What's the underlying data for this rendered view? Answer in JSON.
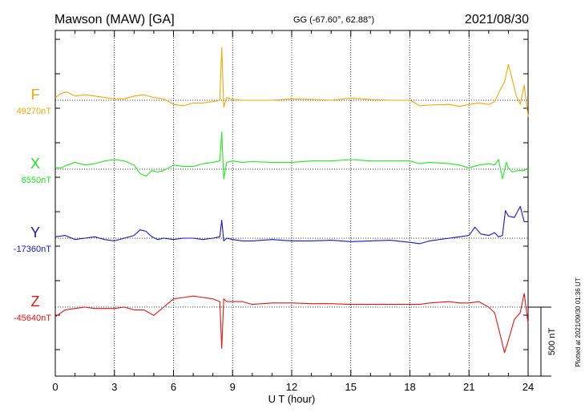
{
  "header": {
    "station": "Mawson (MAW)  [GA]",
    "coords": "GG (-67.60°,  62.88°)",
    "date": "2021/08/30"
  },
  "footer": {
    "plotted_at": "Plotted at 2021/09/30 01:36 UT"
  },
  "chart_data": {
    "type": "line",
    "xlabel": "U T (hour)",
    "xlim": [
      0,
      24
    ],
    "xticks": [
      "0",
      "3",
      "6",
      "9",
      "12",
      "15",
      "18",
      "21",
      "24"
    ],
    "grid": true,
    "scale_bar": {
      "label": "500 nT",
      "value_nT": 500
    },
    "colors": {
      "F": "#f5a800",
      "X": "#1ee81e",
      "Y": "#1414d4",
      "Z": "#e81414"
    },
    "series": [
      {
        "name": "F",
        "baseline_label": "49270nT",
        "baseline_nT": 49270,
        "x": [
          0,
          0.3,
          0.6,
          1.0,
          1.5,
          2.0,
          2.5,
          3.0,
          3.5,
          4.0,
          4.5,
          5.0,
          5.5,
          6.0,
          6.5,
          7.0,
          7.5,
          8.0,
          8.35,
          8.45,
          8.55,
          8.7,
          9.0,
          9.5,
          10,
          11,
          12,
          13,
          14,
          15,
          16,
          17,
          18,
          18.5,
          19,
          20,
          20.5,
          21,
          21.5,
          22,
          22.3,
          22.6,
          22.8,
          23.0,
          23.2,
          23.4,
          23.6,
          23.8,
          24
        ],
        "y": [
          49290,
          49320,
          49330,
          49300,
          49310,
          49300,
          49290,
          49280,
          49280,
          49300,
          49310,
          49290,
          49280,
          49240,
          49230,
          49250,
          49250,
          49260,
          49270,
          49650,
          49220,
          49290,
          49275,
          49270,
          49270,
          49270,
          49280,
          49275,
          49270,
          49285,
          49275,
          49270,
          49270,
          49230,
          49235,
          49240,
          49225,
          49240,
          49250,
          49240,
          49260,
          49350,
          49400,
          49530,
          49420,
          49300,
          49240,
          49380,
          49150
        ]
      },
      {
        "name": "X",
        "baseline_label": "6550nT",
        "baseline_nT": 6550,
        "x": [
          0,
          0.3,
          0.6,
          1.0,
          1.5,
          2.0,
          2.5,
          3.0,
          3.5,
          4.0,
          4.3,
          4.6,
          4.9,
          5.2,
          5.5,
          6.0,
          6.5,
          7.0,
          7.5,
          8.0,
          8.35,
          8.45,
          8.55,
          8.7,
          9.0,
          9.5,
          10,
          11,
          12,
          13,
          14,
          15,
          16,
          17,
          18,
          18.5,
          19,
          20,
          20.5,
          21,
          21.5,
          22,
          22.3,
          22.5,
          22.7,
          22.9,
          23.0,
          23.2,
          23.5,
          23.8,
          24
        ],
        "y": [
          6560,
          6560,
          6580,
          6600,
          6580,
          6590,
          6610,
          6620,
          6610,
          6580,
          6520,
          6500,
          6540,
          6530,
          6540,
          6580,
          6570,
          6570,
          6590,
          6600,
          6610,
          6820,
          6480,
          6600,
          6610,
          6600,
          6605,
          6600,
          6600,
          6610,
          6610,
          6620,
          6610,
          6610,
          6610,
          6590,
          6600,
          6590,
          6580,
          6560,
          6580,
          6590,
          6580,
          6620,
          6480,
          6600,
          6560,
          6530,
          6540,
          6540,
          6560
        ]
      },
      {
        "name": "Y",
        "baseline_label": "-17360nT",
        "baseline_nT": -17360,
        "x": [
          0,
          0.5,
          1.0,
          1.5,
          2.0,
          2.5,
          3.0,
          3.5,
          4.0,
          4.3,
          4.6,
          4.9,
          5.2,
          5.5,
          6.0,
          6.5,
          7.0,
          7.5,
          8.0,
          8.35,
          8.45,
          8.55,
          8.7,
          9.0,
          9.5,
          10,
          11,
          12,
          13,
          14,
          15,
          16,
          17,
          18,
          18.5,
          19,
          20,
          20.5,
          21,
          21.3,
          21.6,
          22,
          22.3,
          22.5,
          22.7,
          22.85,
          23.0,
          23.3,
          23.6,
          23.8,
          24
        ],
        "y": [
          -17350,
          -17340,
          -17370,
          -17360,
          -17350,
          -17370,
          -17380,
          -17360,
          -17340,
          -17300,
          -17310,
          -17350,
          -17370,
          -17360,
          -17370,
          -17360,
          -17360,
          -17370,
          -17360,
          -17350,
          -17230,
          -17380,
          -17360,
          -17370,
          -17380,
          -17380,
          -17370,
          -17380,
          -17380,
          -17375,
          -17385,
          -17380,
          -17375,
          -17390,
          -17400,
          -17380,
          -17360,
          -17350,
          -17340,
          -17280,
          -17330,
          -17340,
          -17320,
          -17350,
          -17340,
          -17160,
          -17200,
          -17210,
          -17130,
          -17240,
          -17240
        ]
      },
      {
        "name": "Z",
        "baseline_label": "-45640nT",
        "baseline_nT": -45640,
        "x": [
          0,
          0.5,
          1.0,
          1.5,
          2.0,
          2.5,
          3.0,
          3.5,
          4.0,
          4.5,
          5.0,
          5.5,
          6.0,
          6.5,
          7.0,
          7.5,
          8.0,
          8.35,
          8.45,
          8.55,
          8.7,
          9.0,
          9.5,
          10,
          11,
          12,
          13,
          14,
          15,
          16,
          17,
          18,
          18.5,
          19,
          20,
          20.5,
          21,
          21.5,
          22,
          22.3,
          22.6,
          22.8,
          23.0,
          23.3,
          23.6,
          23.8,
          24
        ],
        "y": [
          -45710,
          -45660,
          -45650,
          -45640,
          -45650,
          -45650,
          -45650,
          -45640,
          -45660,
          -45660,
          -45700,
          -45640,
          -45580,
          -45570,
          -45560,
          -45570,
          -45580,
          -45600,
          -45940,
          -45580,
          -45600,
          -45600,
          -45600,
          -45620,
          -45610,
          -45610,
          -45615,
          -45615,
          -45620,
          -45620,
          -45620,
          -45620,
          -45620,
          -45610,
          -45600,
          -45610,
          -45610,
          -45600,
          -45640,
          -45680,
          -45850,
          -45970,
          -45880,
          -45730,
          -45680,
          -45540,
          -45760
        ]
      }
    ]
  }
}
